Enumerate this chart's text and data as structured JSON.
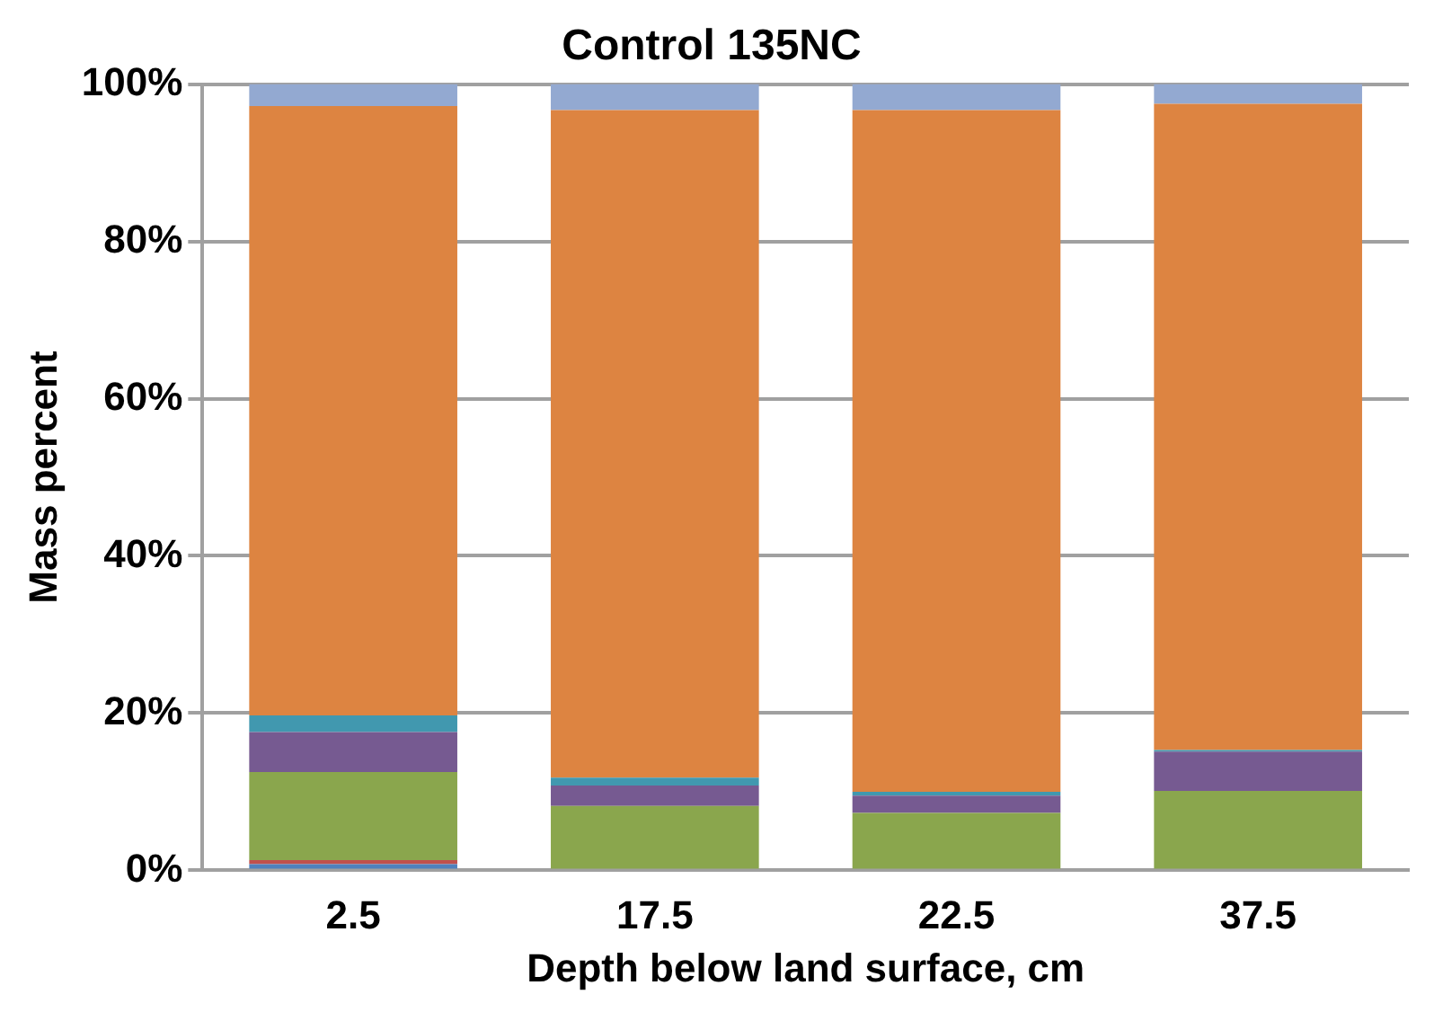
{
  "chart_data": {
    "type": "bar",
    "title": "Control 135NC",
    "xlabel": "Depth below land surface, cm",
    "ylabel": "Mass percent",
    "categories": [
      "2.5",
      "17.5",
      "22.5",
      "37.5"
    ],
    "stacked": true,
    "grid": "y",
    "legend": false,
    "ylim": [
      0,
      100
    ],
    "yticks": [
      {
        "value": 0,
        "label": "0%"
      },
      {
        "value": 20,
        "label": "20%"
      },
      {
        "value": 40,
        "label": "40%"
      },
      {
        "value": 60,
        "label": "60%"
      },
      {
        "value": 80,
        "label": "80%"
      },
      {
        "value": 100,
        "label": "100%"
      }
    ],
    "series": [
      {
        "color": "#4f81bd",
        "values": [
          0.8,
          0,
          0,
          0
        ]
      },
      {
        "color": "#c0504d",
        "values": [
          0.5,
          0,
          0,
          0
        ]
      },
      {
        "color": "#8aa64d",
        "values": [
          11.2,
          8.2,
          7.3,
          10.1
        ]
      },
      {
        "color": "#765a91",
        "values": [
          5.1,
          2.6,
          2.2,
          5.0
        ]
      },
      {
        "color": "#4198af",
        "values": [
          2.1,
          1.0,
          0.5,
          0.2
        ]
      },
      {
        "color": "#dd8441",
        "values": [
          77.5,
          84.9,
          86.7,
          82.2
        ]
      },
      {
        "color": "#93a9d1",
        "values": [
          2.8,
          3.3,
          3.3,
          2.5
        ]
      }
    ]
  }
}
